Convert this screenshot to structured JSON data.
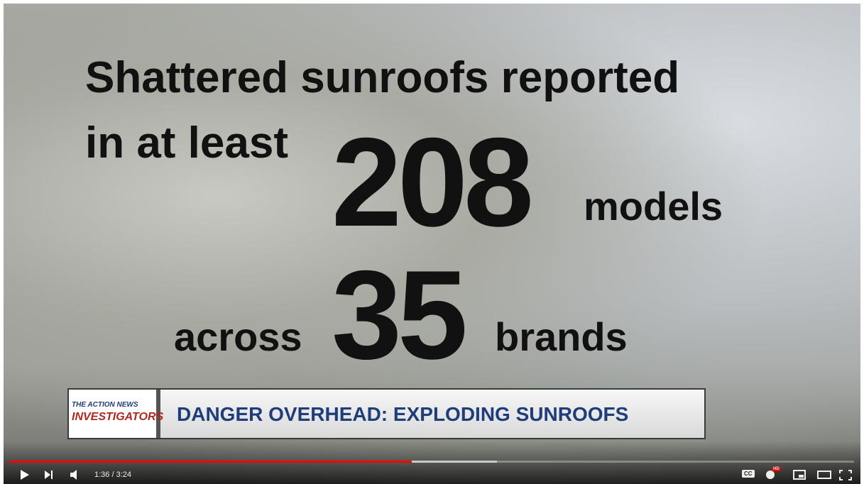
{
  "video": {
    "headline": {
      "line1": "Shattered sunroofs reported",
      "line2": "in at least",
      "models_count": "208",
      "models_word": "models",
      "across_word": "across",
      "brands_count": "35",
      "brands_word": "brands"
    },
    "lower_third": {
      "logo_top": "THE ACTION NEWS",
      "logo_bottom": "INVESTIGATORS",
      "title": "DANGER OVERHEAD: EXPLODING SUNROOFS"
    },
    "controls": {
      "time": "1:36 / 3:24",
      "cc": "CC",
      "hd": "HD"
    }
  }
}
